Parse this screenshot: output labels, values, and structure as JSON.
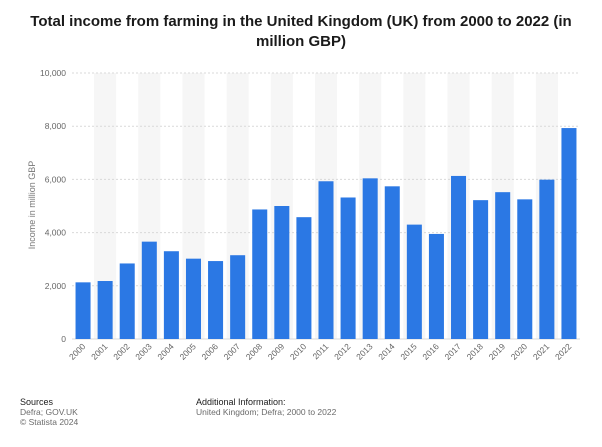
{
  "chart_data": {
    "type": "bar",
    "title": "Total income from farming in the United Kingdom (UK) from 2000 to 2022 (in million GBP)",
    "ylabel": "Income in million GBP",
    "xlabel": "",
    "categories": [
      "2000",
      "2001",
      "2002",
      "2003",
      "2004",
      "2005",
      "2006",
      "2007",
      "2008",
      "2009",
      "2010",
      "2011",
      "2012",
      "2013",
      "2014",
      "2015",
      "2016",
      "2017",
      "2018",
      "2019",
      "2020",
      "2021",
      "2022"
    ],
    "values": [
      2130,
      2180,
      2840,
      3660,
      3300,
      3020,
      2930,
      3150,
      4870,
      5000,
      4580,
      5930,
      5320,
      6040,
      5740,
      4300,
      3950,
      6130,
      5220,
      5520,
      5250,
      5990,
      7930
    ],
    "ylim": [
      0,
      10000
    ],
    "yticks": [
      0,
      2000,
      4000,
      6000,
      8000,
      10000
    ],
    "ytick_labels": [
      "0",
      "2,000",
      "4,000",
      "6,000",
      "8,000",
      "10,000"
    ],
    "grid": true,
    "bar_color": "#2b78e4"
  },
  "footer": {
    "sources_heading": "Sources",
    "sources_lines": [
      "Defra; GOV.UK",
      "© Statista 2024"
    ],
    "additional_heading": "Additional Information:",
    "additional_lines": [
      "United Kingdom; Defra; 2000 to 2022"
    ]
  }
}
